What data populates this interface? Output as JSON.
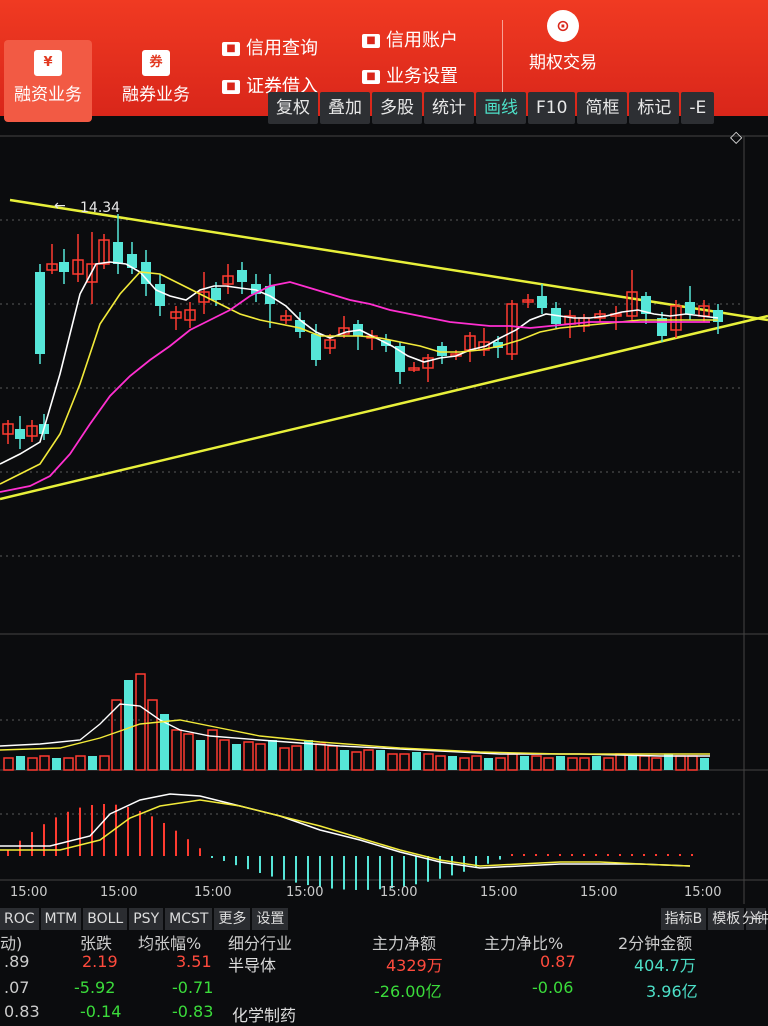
{
  "topbar": {
    "buttons": [
      {
        "label": "融资业务",
        "icon": "¥"
      },
      {
        "label": "融券业务",
        "icon": "券"
      }
    ],
    "small_items": [
      "信用查询",
      "证券借入",
      "信用账户",
      "业务设置"
    ],
    "option_label": "期权交易"
  },
  "toolbar": [
    "复权",
    "叠加",
    "多股",
    "统计",
    "画线",
    "F10",
    "简框",
    "标记",
    "-E"
  ],
  "chart_data": {
    "type": "candlestick",
    "high_label": "14.34",
    "time_labels": [
      "15:00",
      "15:00",
      "15:00",
      "15:00",
      "15:00",
      "15:00",
      "15:00",
      "15:00"
    ],
    "colors": {
      "up": "#ff3b30",
      "down": "#56e6d8",
      "ma_white": "#ffffff",
      "ma_yellow": "#f2ea3a",
      "ma_magenta": "#ff2fd0",
      "trend": "#e8f03a"
    }
  },
  "bottom_tabs": [
    "ROC",
    "MTM",
    "BOLL",
    "PSY",
    "MCST",
    "更多",
    "设置",
    "指标B",
    "模板",
    "+"
  ],
  "right_label": "分钟",
  "table": {
    "headers": [
      "动)",
      "张跌",
      "均张幅%",
      "细分行业",
      "主力净额",
      "主力净比%",
      "2分钟金额"
    ],
    "rows": [
      [
        ".89",
        "2.19",
        "3.51",
        "半导体",
        "4329万",
        "0.87",
        "404.7万"
      ],
      [
        ".07",
        "-5.92",
        "-0.71",
        "",
        "-26.00亿",
        "-0.06",
        "3.96亿"
      ],
      [
        "0.83",
        "-0.14",
        "-0.83",
        "化学制药",
        "",
        "",
        ""
      ]
    ]
  }
}
